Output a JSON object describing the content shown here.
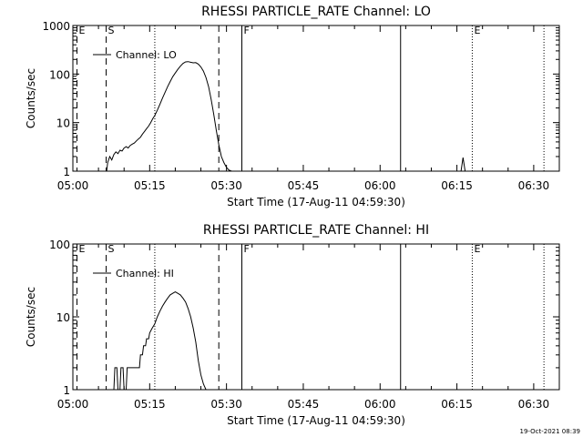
{
  "footer": {
    "date_stamp": "19-Oct-2021 08:39"
  },
  "chart_data": [
    {
      "type": "line",
      "title": "RHESSI PARTICLE_RATE Channel: LO",
      "xlabel": "Start Time (17-Aug-11 04:59:30)",
      "ylabel": "Counts/sec",
      "xaxis_units": "minutes after 05:00 (17-Aug-11)",
      "yscale": "log",
      "xlim": [
        0,
        95
      ],
      "ylim": [
        1,
        1000
      ],
      "x_tick_labels": [
        "05:00",
        "05:15",
        "05:30",
        "05:45",
        "06:00",
        "06:15",
        "06:30"
      ],
      "x_tick_values": [
        0,
        15,
        30,
        45,
        60,
        75,
        90
      ],
      "y_tick_labels": [
        "1",
        "10",
        "100",
        "1000"
      ],
      "y_tick_values": [
        1,
        10,
        100,
        1000
      ],
      "legend": {
        "label": "Channel: LO",
        "position": "top-left"
      },
      "markers": [
        {
          "label": "E",
          "x": 0.8,
          "style": "dashed"
        },
        {
          "label": "S",
          "x": 6.5,
          "style": "dashed"
        },
        {
          "label": "",
          "x": 16,
          "style": "dotted"
        },
        {
          "label": "",
          "x": 28.5,
          "style": "dashed"
        },
        {
          "label": "F",
          "x": 33,
          "style": "solid"
        },
        {
          "label": "",
          "x": 64,
          "style": "solid"
        },
        {
          "label": "E",
          "x": 78,
          "style": "dotted"
        },
        {
          "label": "",
          "x": 92,
          "style": "dotted"
        }
      ],
      "series": [
        {
          "name": "Channel: LO",
          "x": [
            6.6,
            6.8,
            7.2,
            7.6,
            8.0,
            8.4,
            8.8,
            9.2,
            9.6,
            10.0,
            10.4,
            10.8,
            11.2,
            11.6,
            12.0,
            12.4,
            12.8,
            13.2,
            13.6,
            14.0,
            14.4,
            14.8,
            15.2,
            15.6,
            16.0,
            16.5,
            17.0,
            17.5,
            18.0,
            18.5,
            19.0,
            19.5,
            20.0,
            20.5,
            21.0,
            21.5,
            22.0,
            22.5,
            23.0,
            23.5,
            24.0,
            24.5,
            25.0,
            25.5,
            26.0,
            26.5,
            27.0,
            27.5,
            28.0,
            28.5,
            29.0,
            29.5,
            30.0,
            30.5,
            31.0
          ],
          "y": [
            1.0,
            1.5,
            2.0,
            1.7,
            2.2,
            2.5,
            2.3,
            2.7,
            2.6,
            3.0,
            3.2,
            3.0,
            3.4,
            3.6,
            3.8,
            4.2,
            4.6,
            5.0,
            5.8,
            6.6,
            7.5,
            8.5,
            10.0,
            12.0,
            14.0,
            18.0,
            24.0,
            32.0,
            42.0,
            55.0,
            70.0,
            88.0,
            105.0,
            125.0,
            145.0,
            165.0,
            178.0,
            180.0,
            175.0,
            170.0,
            172.0,
            160.0,
            140.0,
            115.0,
            85.0,
            55.0,
            30.0,
            15.0,
            7.0,
            3.5,
            2.0,
            1.5,
            1.2,
            1.05,
            1.0
          ]
        },
        {
          "name": "",
          "x": [
            75.8,
            76.2,
            76.6
          ],
          "y": [
            1.0,
            1.9,
            1.0
          ]
        }
      ]
    },
    {
      "type": "line",
      "title": "RHESSI PARTICLE_RATE Channel: HI",
      "xlabel": "Start Time (17-Aug-11 04:59:30)",
      "ylabel": "Counts/sec",
      "xaxis_units": "minutes after 05:00 (17-Aug-11)",
      "yscale": "log",
      "xlim": [
        0,
        95
      ],
      "ylim": [
        1,
        100
      ],
      "x_tick_labels": [
        "05:00",
        "05:15",
        "05:30",
        "05:45",
        "06:00",
        "06:15",
        "06:30"
      ],
      "x_tick_values": [
        0,
        15,
        30,
        45,
        60,
        75,
        90
      ],
      "y_tick_labels": [
        "1",
        "10",
        "100"
      ],
      "y_tick_values": [
        1,
        10,
        100
      ],
      "legend": {
        "label": "Channel: HI",
        "position": "top-left"
      },
      "markers": [
        {
          "label": "E",
          "x": 0.8,
          "style": "dashed"
        },
        {
          "label": "S",
          "x": 6.5,
          "style": "dashed"
        },
        {
          "label": "",
          "x": 16,
          "style": "dotted"
        },
        {
          "label": "",
          "x": 28.5,
          "style": "dashed"
        },
        {
          "label": "F",
          "x": 33,
          "style": "solid"
        },
        {
          "label": "",
          "x": 64,
          "style": "solid"
        },
        {
          "label": "E",
          "x": 78,
          "style": "dotted"
        },
        {
          "label": "",
          "x": 92,
          "style": "dotted"
        }
      ],
      "series": [
        {
          "name": "Channel: HI",
          "x": [
            8.0,
            8.2,
            8.6,
            8.8,
            9.2,
            9.4,
            9.8,
            10.0,
            10.4,
            10.6,
            11.0,
            11.2,
            13.0,
            13.2,
            13.6,
            13.8,
            14.2,
            14.4,
            14.8,
            15.0,
            15.5,
            16.0,
            16.5,
            17.0,
            17.5,
            18.0,
            18.5,
            19.0,
            19.5,
            20.0,
            20.5,
            21.0,
            21.5,
            22.0,
            22.5,
            23.0,
            23.5,
            24.0,
            24.5,
            25.0,
            25.5,
            26.0
          ],
          "y": [
            1.0,
            2.0,
            2.0,
            1.0,
            1.0,
            2.0,
            2.0,
            1.0,
            1.0,
            2.0,
            2.0,
            2.0,
            2.0,
            3.0,
            3.0,
            4.0,
            4.0,
            5.0,
            5.0,
            6.0,
            7.0,
            8.0,
            10.0,
            12.0,
            14.0,
            16.0,
            18.0,
            20.0,
            21.0,
            22.0,
            21.0,
            20.0,
            18.0,
            16.0,
            13.0,
            10.0,
            7.0,
            4.5,
            2.5,
            1.6,
            1.2,
            1.0
          ]
        }
      ]
    }
  ]
}
